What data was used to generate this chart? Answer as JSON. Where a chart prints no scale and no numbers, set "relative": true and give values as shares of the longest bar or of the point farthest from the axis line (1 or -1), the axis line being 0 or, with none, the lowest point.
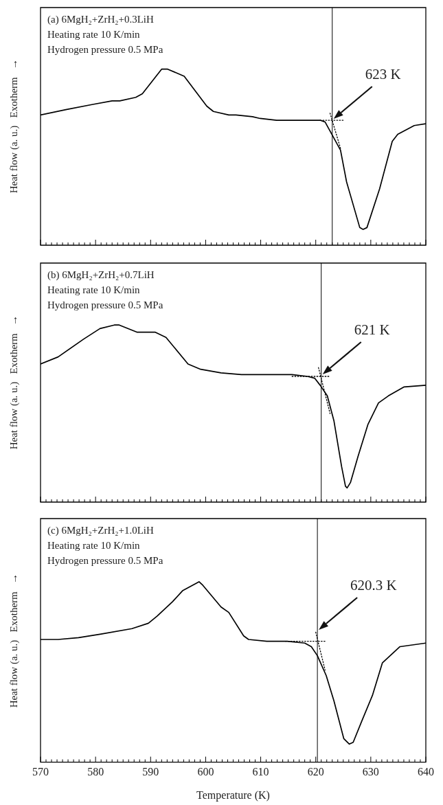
{
  "chart_data": [
    {
      "type": "line",
      "title": "(a) 6MgH₂+ZrH₂+0.3LiH",
      "subtitle": "Heating rate 10 K/min",
      "ylabel": "Heat flow (a. u.)   Exotherm   →",
      "relative": true,
      "marker": "none",
      "tick_labels": false,
      "annotations": [
        "Hydrogen pressure 0.5 MPa"
      ],
      "xlim": [
        570,
        640
      ],
      "xticks": [
        570,
        {
          "value": 571,
          "label": null
        },
        {
          "value": 572,
          "label": null
        },
        {
          "value": 573,
          "label": null
        },
        {
          "value": 574,
          "label": null
        },
        {
          "value": 575,
          "label": null
        },
        {
          "value": 576,
          "label": null
        },
        {
          "value": 577,
          "label": null
        },
        {
          "value": 578,
          "label": null
        },
        {
          "value": 579,
          "label": null
        },
        580,
        {
          "value": 581,
          "label": null
        },
        {
          "value": 582,
          "label": null
        },
        {
          "value": 583,
          "label": null
        },
        {
          "value": 584,
          "label": null
        },
        {
          "value": 585,
          "label": null
        },
        {
          "value": 586,
          "label": null
        },
        {
          "value": 587,
          "label": null
        },
        {
          "value": 588,
          "label": null
        },
        {
          "value": 589,
          "label": null
        },
        590,
        {
          "value": 591,
          "label": null
        },
        {
          "value": 592,
          "label": null
        },
        {
          "value": 593,
          "label": null
        },
        {
          "value": 594,
          "label": null
        },
        {
          "value": 595,
          "label": null
        },
        {
          "value": 596,
          "label": null
        },
        {
          "value": 597,
          "label": null
        },
        {
          "value": 598,
          "label": null
        },
        {
          "value": 599,
          "label": null
        },
        600,
        {
          "value": 601,
          "label": null
        },
        {
          "value": 602,
          "label": null
        },
        {
          "value": 603,
          "label": null
        },
        {
          "value": 604,
          "label": null
        },
        {
          "value": 605,
          "label": null
        },
        {
          "value": 606,
          "label": null
        },
        {
          "value": 607,
          "label": null
        },
        {
          "value": 608,
          "label": null
        },
        {
          "value": 609,
          "label": null
        },
        610,
        {
          "value": 611,
          "label": null
        },
        {
          "value": 612,
          "label": null
        },
        {
          "value": 613,
          "label": null
        },
        {
          "value": 614,
          "label": null
        },
        {
          "value": 615,
          "label": null
        },
        {
          "value": 616,
          "label": null
        },
        {
          "value": 617,
          "label": null
        },
        {
          "value": 618,
          "label": null
        },
        {
          "value": 619,
          "label": null
        },
        620,
        {
          "value": 621,
          "label": null
        },
        {
          "value": 622,
          "label": null
        },
        {
          "value": 623,
          "label": null
        },
        {
          "value": 624,
          "label": null
        },
        {
          "value": 625,
          "label": null
        },
        {
          "value": 626,
          "label": null
        },
        {
          "value": 627,
          "label": null
        },
        {
          "value": 628,
          "label": null
        },
        {
          "value": 629,
          "label": null
        },
        630,
        {
          "value": 631,
          "label": null
        },
        {
          "value": 632,
          "label": null
        },
        {
          "value": 633,
          "label": null
        },
        {
          "value": 634,
          "label": null
        },
        {
          "value": 635,
          "label": null
        },
        {
          "value": 636,
          "label": null
        },
        {
          "value": 637,
          "label": null
        },
        {
          "value": 638,
          "label": null
        },
        {
          "value": 639,
          "label": null
        },
        640
      ],
      "ref_lines": [
        {
          "axis": "x",
          "value": 623,
          "label": "623 K",
          "color": "#000000"
        }
      ],
      "x": [
        570,
        574.6,
        579.5,
        583,
        584.4,
        587.3,
        588.5,
        592,
        593.1,
        596.1,
        600.2,
        601.4,
        604.2,
        605.5,
        608.5,
        609.9,
        612.9,
        617.5,
        620.8,
        621.7,
        623.1,
        624.5,
        625.6,
        628,
        628.6,
        629.3,
        631.6,
        633.9,
        634.9,
        637.9,
        640
      ],
      "series": [
        {
          "color": "#000000",
          "values": [
            0.74,
            0.77,
            0.8,
            0.82,
            0.82,
            0.84,
            0.86,
            1,
            1,
            0.96,
            0.79,
            0.76,
            0.74,
            0.74,
            0.73,
            0.72,
            0.71,
            0.71,
            0.71,
            0.7,
            0.62,
            0.54,
            0.36,
            0.1,
            0.09,
            0.1,
            0.32,
            0.59,
            0.63,
            0.68,
            0.69
          ]
        },
        {
          "color": "#000000",
          "line_style": "dotted",
          "x": [
            620.8,
            625.1
          ],
          "values": [
            0.71,
            0.71
          ]
        },
        {
          "color": "#000000",
          "line_style": "dotted",
          "x": [
            622.6,
            624.5
          ],
          "values": [
            0.75,
            0.55
          ]
        }
      ]
    },
    {
      "type": "line",
      "title": "(b) 6MgH₂+ZrH₂+0.7LiH",
      "subtitle": "Heating rate 10 K/min",
      "ylabel": "Heat flow (a. u.)   Exotherm   →",
      "relative": true,
      "marker": "none",
      "tick_labels": false,
      "annotations": [
        "Hydrogen pressure 0.5 MPa"
      ],
      "xlim": [
        570,
        640
      ],
      "xticks": [
        570,
        {
          "value": 571,
          "label": null
        },
        {
          "value": 572,
          "label": null
        },
        {
          "value": 573,
          "label": null
        },
        {
          "value": 574,
          "label": null
        },
        {
          "value": 575,
          "label": null
        },
        {
          "value": 576,
          "label": null
        },
        {
          "value": 577,
          "label": null
        },
        {
          "value": 578,
          "label": null
        },
        {
          "value": 579,
          "label": null
        },
        580,
        {
          "value": 581,
          "label": null
        },
        {
          "value": 582,
          "label": null
        },
        {
          "value": 583,
          "label": null
        },
        {
          "value": 584,
          "label": null
        },
        {
          "value": 585,
          "label": null
        },
        {
          "value": 586,
          "label": null
        },
        {
          "value": 587,
          "label": null
        },
        {
          "value": 588,
          "label": null
        },
        {
          "value": 589,
          "label": null
        },
        590,
        {
          "value": 591,
          "label": null
        },
        {
          "value": 592,
          "label": null
        },
        {
          "value": 593,
          "label": null
        },
        {
          "value": 594,
          "label": null
        },
        {
          "value": 595,
          "label": null
        },
        {
          "value": 596,
          "label": null
        },
        {
          "value": 597,
          "label": null
        },
        {
          "value": 598,
          "label": null
        },
        {
          "value": 599,
          "label": null
        },
        600,
        {
          "value": 601,
          "label": null
        },
        {
          "value": 602,
          "label": null
        },
        {
          "value": 603,
          "label": null
        },
        {
          "value": 604,
          "label": null
        },
        {
          "value": 605,
          "label": null
        },
        {
          "value": 606,
          "label": null
        },
        {
          "value": 607,
          "label": null
        },
        {
          "value": 608,
          "label": null
        },
        {
          "value": 609,
          "label": null
        },
        610,
        {
          "value": 611,
          "label": null
        },
        {
          "value": 612,
          "label": null
        },
        {
          "value": 613,
          "label": null
        },
        {
          "value": 614,
          "label": null
        },
        {
          "value": 615,
          "label": null
        },
        {
          "value": 616,
          "label": null
        },
        {
          "value": 617,
          "label": null
        },
        {
          "value": 618,
          "label": null
        },
        {
          "value": 619,
          "label": null
        },
        620,
        {
          "value": 621,
          "label": null
        },
        {
          "value": 622,
          "label": null
        },
        {
          "value": 623,
          "label": null
        },
        {
          "value": 624,
          "label": null
        },
        {
          "value": 625,
          "label": null
        },
        {
          "value": 626,
          "label": null
        },
        {
          "value": 627,
          "label": null
        },
        {
          "value": 628,
          "label": null
        },
        {
          "value": 629,
          "label": null
        },
        630,
        {
          "value": 631,
          "label": null
        },
        {
          "value": 632,
          "label": null
        },
        {
          "value": 633,
          "label": null
        },
        {
          "value": 634,
          "label": null
        },
        {
          "value": 635,
          "label": null
        },
        {
          "value": 636,
          "label": null
        },
        {
          "value": 637,
          "label": null
        },
        {
          "value": 638,
          "label": null
        },
        {
          "value": 639,
          "label": null
        },
        640
      ],
      "ref_lines": [
        {
          "axis": "x",
          "value": 621,
          "label": "621 K",
          "color": "#000000"
        }
      ],
      "x": [
        570,
        573.2,
        577.8,
        580.8,
        583.4,
        584.3,
        587.5,
        590.8,
        592.8,
        596.8,
        599.1,
        602.8,
        606.5,
        611.1,
        615.7,
        618.5,
        619.8,
        620.8,
        622.1,
        623.3,
        624.7,
        625.4,
        625.7,
        626.3,
        627.7,
        629.5,
        631.4,
        633.2,
        636,
        640
      ],
      "series": [
        {
          "color": "#000000",
          "values": [
            0.78,
            0.82,
            0.92,
            0.98,
            1,
            1,
            0.96,
            0.96,
            0.93,
            0.78,
            0.75,
            0.73,
            0.72,
            0.72,
            0.72,
            0.71,
            0.7,
            0.66,
            0.6,
            0.46,
            0.2,
            0.09,
            0.08,
            0.11,
            0.26,
            0.44,
            0.56,
            0.6,
            0.65,
            0.66
          ]
        },
        {
          "color": "#000000",
          "line_style": "dotted",
          "x": [
            615.7,
            622.4
          ],
          "values": [
            0.71,
            0.71
          ]
        },
        {
          "color": "#000000",
          "line_style": "dotted",
          "x": [
            620.5,
            622.6
          ],
          "values": [
            0.76,
            0.5
          ]
        }
      ]
    },
    {
      "type": "line",
      "title": "(c) 6MgH₂+ZrH₂+1.0LiH",
      "subtitle": "Heating rate 10 K/min",
      "ylabel": "Heat flow (a. u.)   Exotherm   →",
      "xlabel": "Temperature (K)",
      "relative": true,
      "marker": "none",
      "tick_labels": "x",
      "annotations": [
        "Hydrogen pressure 0.5 MPa"
      ],
      "xlim": [
        570,
        640
      ],
      "xticks": [
        570,
        {
          "value": 571,
          "label": null
        },
        {
          "value": 572,
          "label": null
        },
        {
          "value": 573,
          "label": null
        },
        {
          "value": 574,
          "label": null
        },
        {
          "value": 575,
          "label": null
        },
        {
          "value": 576,
          "label": null
        },
        {
          "value": 577,
          "label": null
        },
        {
          "value": 578,
          "label": null
        },
        {
          "value": 579,
          "label": null
        },
        580,
        {
          "value": 581,
          "label": null
        },
        {
          "value": 582,
          "label": null
        },
        {
          "value": 583,
          "label": null
        },
        {
          "value": 584,
          "label": null
        },
        {
          "value": 585,
          "label": null
        },
        {
          "value": 586,
          "label": null
        },
        {
          "value": 587,
          "label": null
        },
        {
          "value": 588,
          "label": null
        },
        {
          "value": 589,
          "label": null
        },
        590,
        {
          "value": 591,
          "label": null
        },
        {
          "value": 592,
          "label": null
        },
        {
          "value": 593,
          "label": null
        },
        {
          "value": 594,
          "label": null
        },
        {
          "value": 595,
          "label": null
        },
        {
          "value": 596,
          "label": null
        },
        {
          "value": 597,
          "label": null
        },
        {
          "value": 598,
          "label": null
        },
        {
          "value": 599,
          "label": null
        },
        600,
        {
          "value": 601,
          "label": null
        },
        {
          "value": 602,
          "label": null
        },
        {
          "value": 603,
          "label": null
        },
        {
          "value": 604,
          "label": null
        },
        {
          "value": 605,
          "label": null
        },
        {
          "value": 606,
          "label": null
        },
        {
          "value": 607,
          "label": null
        },
        {
          "value": 608,
          "label": null
        },
        {
          "value": 609,
          "label": null
        },
        610,
        {
          "value": 611,
          "label": null
        },
        {
          "value": 612,
          "label": null
        },
        {
          "value": 613,
          "label": null
        },
        {
          "value": 614,
          "label": null
        },
        {
          "value": 615,
          "label": null
        },
        {
          "value": 616,
          "label": null
        },
        {
          "value": 617,
          "label": null
        },
        {
          "value": 618,
          "label": null
        },
        {
          "value": 619,
          "label": null
        },
        620,
        {
          "value": 621,
          "label": null
        },
        {
          "value": 622,
          "label": null
        },
        {
          "value": 623,
          "label": null
        },
        {
          "value": 624,
          "label": null
        },
        {
          "value": 625,
          "label": null
        },
        {
          "value": 626,
          "label": null
        },
        {
          "value": 627,
          "label": null
        },
        {
          "value": 628,
          "label": null
        },
        {
          "value": 629,
          "label": null
        },
        630,
        {
          "value": 631,
          "label": null
        },
        {
          "value": 632,
          "label": null
        },
        {
          "value": 633,
          "label": null
        },
        {
          "value": 634,
          "label": null
        },
        {
          "value": 635,
          "label": null
        },
        {
          "value": 636,
          "label": null
        },
        {
          "value": 637,
          "label": null
        },
        {
          "value": 638,
          "label": null
        },
        {
          "value": 639,
          "label": null
        },
        640
      ],
      "ref_lines": [
        {
          "axis": "x",
          "value": 620.3,
          "label": "620.3 K",
          "color": "#000000"
        }
      ],
      "x": [
        570,
        573.2,
        576.9,
        581,
        586.6,
        589.6,
        591.2,
        594,
        595.8,
        598.8,
        599.5,
        602.8,
        604.2,
        606.9,
        607.8,
        611.1,
        614.8,
        618,
        619.2,
        620.3,
        621.9,
        623.3,
        625.1,
        626.1,
        626.8,
        628.4,
        630.3,
        632.1,
        635.3,
        640
      ],
      "series": [
        {
          "color": "#000000",
          "values": [
            0.68,
            0.68,
            0.69,
            0.71,
            0.74,
            0.77,
            0.81,
            0.89,
            0.95,
            1,
            0.98,
            0.86,
            0.83,
            0.7,
            0.68,
            0.67,
            0.67,
            0.66,
            0.64,
            0.59,
            0.48,
            0.34,
            0.13,
            0.1,
            0.11,
            0.23,
            0.37,
            0.55,
            0.64,
            0.66
          ]
        },
        {
          "color": "#000000",
          "line_style": "dotted",
          "x": [
            614.5,
            621.7
          ],
          "values": [
            0.67,
            0.67
          ]
        },
        {
          "color": "#000000",
          "line_style": "dotted",
          "x": [
            620,
            621.7
          ],
          "values": [
            0.72,
            0.51
          ]
        }
      ]
    }
  ]
}
